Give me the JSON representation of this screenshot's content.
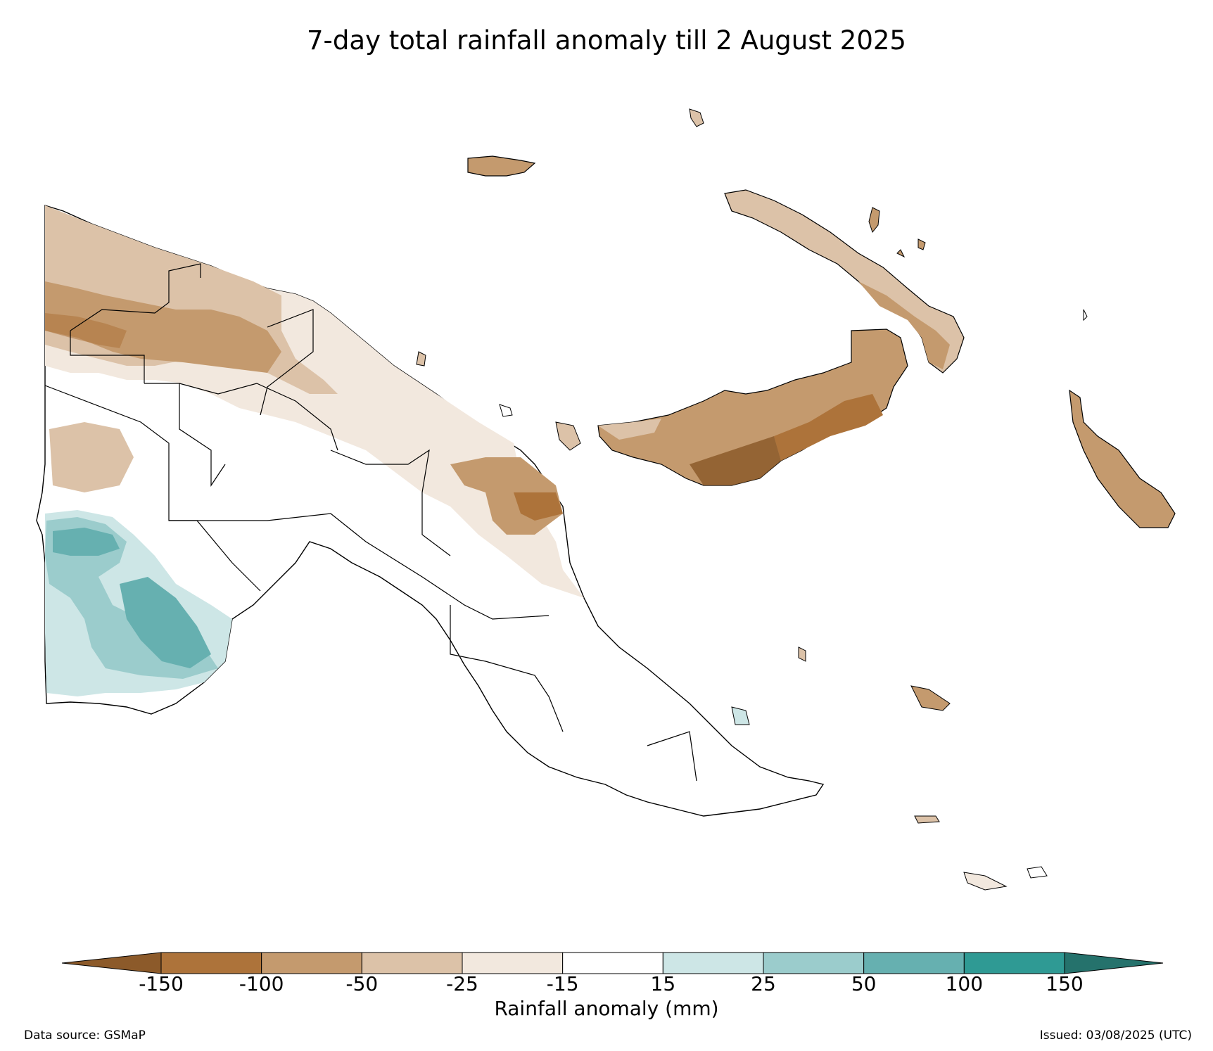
{
  "title": "7-day total rainfall anomaly till 2 August 2025",
  "colorbar": {
    "label": "Rainfall anomaly (mm)",
    "ticks": [
      "-150",
      "-100",
      "-50",
      "-25",
      "-15",
      "15",
      "25",
      "50",
      "100",
      "150"
    ],
    "colors": {
      "below_min": "#8c5a2a",
      "bins": [
        "#ad733a",
        "#c49a6e",
        "#dcc2a8",
        "#f2e8de",
        "#ffffff",
        "#cde6e6",
        "#9bcccc",
        "#66b0b0",
        "#2f9a94"
      ],
      "above_max": "#25726c"
    }
  },
  "footer": {
    "source": "Data source: GSMaP",
    "issued": "Issued: 03/08/2025 (UTC)"
  }
}
